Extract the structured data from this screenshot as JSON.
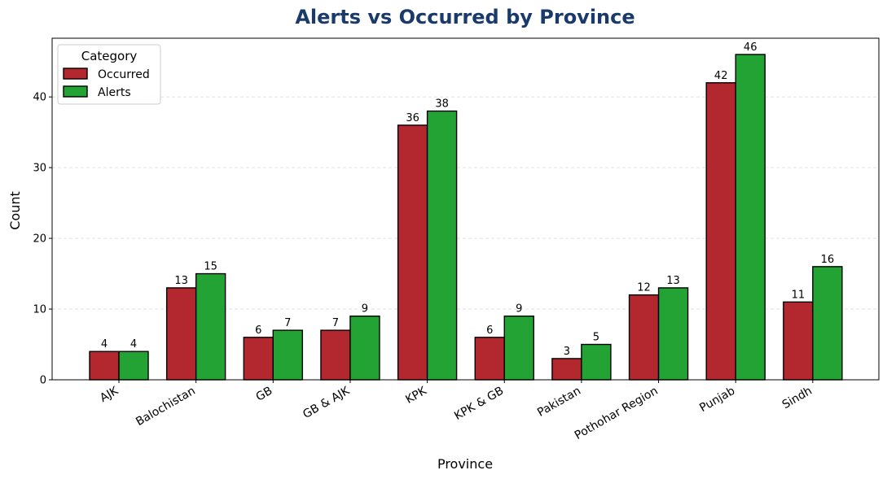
{
  "chart_data": {
    "type": "bar",
    "title": "Alerts vs Occurred by Province",
    "xlabel": "Province",
    "ylabel": "Count",
    "categories": [
      "AJK",
      "Balochistan",
      "GB",
      "GB & AJK",
      "KPK",
      "KPK & GB",
      "Pakistan",
      "Pothohar Region",
      "Punjab",
      "Sindh"
    ],
    "series": [
      {
        "name": "Occurred",
        "color": "#b2282e",
        "values": [
          4,
          13,
          6,
          7,
          36,
          6,
          3,
          12,
          42,
          11
        ]
      },
      {
        "name": "Alerts",
        "color": "#23a333",
        "values": [
          4,
          15,
          7,
          9,
          38,
          9,
          5,
          13,
          46,
          16
        ]
      }
    ],
    "ylim": [
      0,
      48.3
    ],
    "yticks": [
      0,
      10,
      20,
      30,
      40
    ],
    "grid": "y-dashed",
    "legend": {
      "title": "Category",
      "placement": "top-left"
    },
    "title_color": "#1a3a6b"
  }
}
